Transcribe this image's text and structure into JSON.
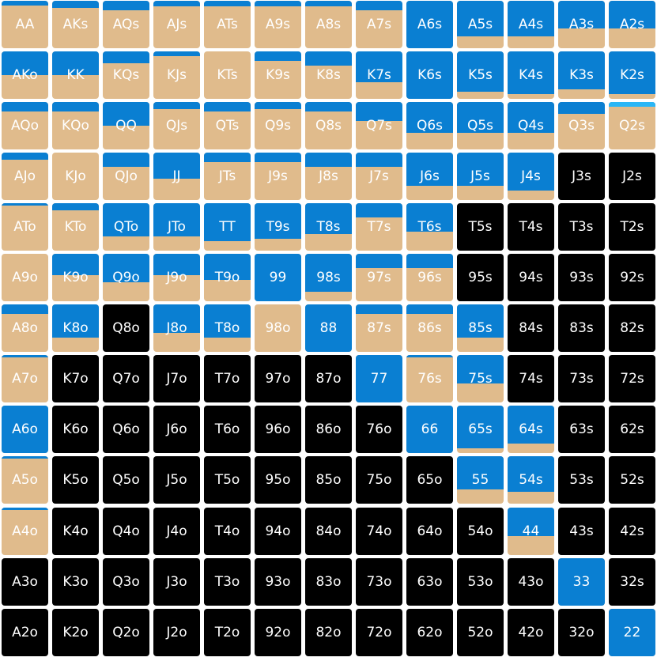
{
  "colors": {
    "raise": "#0a7fd2",
    "call": "#e0bb8c",
    "fold": "#000000",
    "accent": "#29b6f6",
    "text": "#ffffff"
  },
  "legend_note": "Each cell: top portion blue (raise), lower portion tan (call); black = fold",
  "grid": {
    "rows": [
      [
        {
          "hand": "AA",
          "raise": 0.1,
          "call": 0.9
        },
        {
          "hand": "AKs",
          "raise": 0.15,
          "call": 0.85
        },
        {
          "hand": "AQs",
          "raise": 0.2,
          "call": 0.8
        },
        {
          "hand": "AJs",
          "raise": 0.12,
          "call": 0.88
        },
        {
          "hand": "ATs",
          "raise": 0.12,
          "call": 0.88
        },
        {
          "hand": "A9s",
          "raise": 0.12,
          "call": 0.88
        },
        {
          "hand": "A8s",
          "raise": 0.12,
          "call": 0.88
        },
        {
          "hand": "A7s",
          "raise": 0.2,
          "call": 0.8
        },
        {
          "hand": "A6s",
          "raise": 1.0,
          "call": 0.0
        },
        {
          "hand": "A5s",
          "raise": 0.75,
          "call": 0.25
        },
        {
          "hand": "A4s",
          "raise": 0.75,
          "call": 0.25
        },
        {
          "hand": "A3s",
          "raise": 0.58,
          "call": 0.42
        },
        {
          "hand": "A2s",
          "raise": 0.58,
          "call": 0.42
        }
      ],
      [
        {
          "hand": "AKo",
          "raise": 0.5,
          "call": 0.5
        },
        {
          "hand": "KK",
          "raise": 0.5,
          "call": 0.5
        },
        {
          "hand": "KQs",
          "raise": 0.25,
          "call": 0.75
        },
        {
          "hand": "KJs",
          "raise": 0.1,
          "call": 0.9
        },
        {
          "hand": "KTs",
          "raise": 0.0,
          "call": 1.0
        },
        {
          "hand": "K9s",
          "raise": 0.2,
          "call": 0.8
        },
        {
          "hand": "K8s",
          "raise": 0.3,
          "call": 0.7
        },
        {
          "hand": "K7s",
          "raise": 0.65,
          "call": 0.35
        },
        {
          "hand": "K6s",
          "raise": 1.0,
          "call": 0.0
        },
        {
          "hand": "K5s",
          "raise": 0.85,
          "call": 0.15
        },
        {
          "hand": "K4s",
          "raise": 0.9,
          "call": 0.1
        },
        {
          "hand": "K3s",
          "raise": 0.8,
          "call": 0.2
        },
        {
          "hand": "K2s",
          "raise": 0.9,
          "call": 0.1
        }
      ],
      [
        {
          "hand": "AQo",
          "raise": 0.2,
          "call": 0.8
        },
        {
          "hand": "KQo",
          "raise": 0.2,
          "call": 0.8
        },
        {
          "hand": "QQ",
          "raise": 0.5,
          "call": 0.5
        },
        {
          "hand": "QJs",
          "raise": 0.15,
          "call": 0.85
        },
        {
          "hand": "QTs",
          "raise": 0.2,
          "call": 0.8
        },
        {
          "hand": "Q9s",
          "raise": 0.15,
          "call": 0.85
        },
        {
          "hand": "Q8s",
          "raise": 0.2,
          "call": 0.8
        },
        {
          "hand": "Q7s",
          "raise": 0.4,
          "call": 0.6
        },
        {
          "hand": "Q6s",
          "raise": 0.65,
          "call": 0.35
        },
        {
          "hand": "Q5s",
          "raise": 0.65,
          "call": 0.35
        },
        {
          "hand": "Q4s",
          "raise": 0.65,
          "call": 0.35
        },
        {
          "hand": "Q3s",
          "raise": 0.25,
          "call": 0.75
        },
        {
          "hand": "Q2s",
          "raise": 0.1,
          "call": 0.9,
          "cyan": 0.1
        }
      ],
      [
        {
          "hand": "AJo",
          "raise": 0.15,
          "call": 0.85
        },
        {
          "hand": "KJo",
          "raise": 0.0,
          "call": 1.0
        },
        {
          "hand": "QJo",
          "raise": 0.3,
          "call": 0.7
        },
        {
          "hand": "JJ",
          "raise": 0.55,
          "call": 0.45
        },
        {
          "hand": "JTs",
          "raise": 0.2,
          "call": 0.8
        },
        {
          "hand": "J9s",
          "raise": 0.2,
          "call": 0.8
        },
        {
          "hand": "J8s",
          "raise": 0.3,
          "call": 0.7
        },
        {
          "hand": "J7s",
          "raise": 0.3,
          "call": 0.7
        },
        {
          "hand": "J6s",
          "raise": 0.7,
          "call": 0.3
        },
        {
          "hand": "J5s",
          "raise": 0.7,
          "call": 0.3
        },
        {
          "hand": "J4s",
          "raise": 0.8,
          "call": 0.2
        },
        {
          "hand": "J3s",
          "fold": true
        },
        {
          "hand": "J2s",
          "fold": true
        }
      ],
      [
        {
          "hand": "ATo",
          "raise": 0.05,
          "call": 0.95
        },
        {
          "hand": "KTo",
          "raise": 0.15,
          "call": 0.85
        },
        {
          "hand": "QTo",
          "raise": 0.7,
          "call": 0.3
        },
        {
          "hand": "JTo",
          "raise": 0.7,
          "call": 0.3
        },
        {
          "hand": "TT",
          "raise": 0.8,
          "call": 0.2
        },
        {
          "hand": "T9s",
          "raise": 0.75,
          "call": 0.25
        },
        {
          "hand": "T8s",
          "raise": 0.65,
          "call": 0.35
        },
        {
          "hand": "T7s",
          "raise": 0.3,
          "call": 0.7
        },
        {
          "hand": "T6s",
          "raise": 0.6,
          "call": 0.4
        },
        {
          "hand": "T5s",
          "fold": true
        },
        {
          "hand": "T4s",
          "fold": true
        },
        {
          "hand": "T3s",
          "fold": true
        },
        {
          "hand": "T2s",
          "fold": true
        }
      ],
      [
        {
          "hand": "A9o",
          "raise": 0.0,
          "call": 1.0
        },
        {
          "hand": "K9o",
          "raise": 0.45,
          "call": 0.55
        },
        {
          "hand": "Q9o",
          "raise": 0.6,
          "call": 0.4
        },
        {
          "hand": "J9o",
          "raise": 0.45,
          "call": 0.55
        },
        {
          "hand": "T9o",
          "raise": 0.55,
          "call": 0.45
        },
        {
          "hand": "99",
          "raise": 1.0,
          "call": 0.0
        },
        {
          "hand": "98s",
          "raise": 0.8,
          "call": 0.2
        },
        {
          "hand": "97s",
          "raise": 0.3,
          "call": 0.7
        },
        {
          "hand": "96s",
          "raise": 0.3,
          "call": 0.7
        },
        {
          "hand": "95s",
          "fold": true
        },
        {
          "hand": "94s",
          "fold": true
        },
        {
          "hand": "93s",
          "fold": true
        },
        {
          "hand": "92s",
          "fold": true
        }
      ],
      [
        {
          "hand": "A8o",
          "raise": 0.2,
          "call": 0.8
        },
        {
          "hand": "K8o",
          "raise": 0.7,
          "call": 0.3
        },
        {
          "hand": "Q8o",
          "fold": true
        },
        {
          "hand": "J8o",
          "raise": 0.6,
          "call": 0.4
        },
        {
          "hand": "T8o",
          "raise": 0.7,
          "call": 0.3
        },
        {
          "hand": "98o",
          "raise": 0.0,
          "call": 1.0
        },
        {
          "hand": "88",
          "raise": 1.0,
          "call": 0.0
        },
        {
          "hand": "87s",
          "raise": 0.2,
          "call": 0.8
        },
        {
          "hand": "86s",
          "raise": 0.2,
          "call": 0.8
        },
        {
          "hand": "85s",
          "raise": 0.7,
          "call": 0.3
        },
        {
          "hand": "84s",
          "fold": true
        },
        {
          "hand": "83s",
          "fold": true
        },
        {
          "hand": "82s",
          "fold": true
        }
      ],
      [
        {
          "hand": "A7o",
          "raise": 0.05,
          "call": 0.95
        },
        {
          "hand": "K7o",
          "fold": true
        },
        {
          "hand": "Q7o",
          "fold": true
        },
        {
          "hand": "J7o",
          "fold": true
        },
        {
          "hand": "T7o",
          "fold": true
        },
        {
          "hand": "97o",
          "fold": true
        },
        {
          "hand": "87o",
          "fold": true
        },
        {
          "hand": "77",
          "raise": 1.0,
          "call": 0.0
        },
        {
          "hand": "76s",
          "raise": 0.05,
          "call": 0.95
        },
        {
          "hand": "75s",
          "raise": 0.6,
          "call": 0.4
        },
        {
          "hand": "74s",
          "fold": true
        },
        {
          "hand": "73s",
          "fold": true
        },
        {
          "hand": "72s",
          "fold": true
        }
      ],
      [
        {
          "hand": "A6o",
          "raise": 1.0,
          "call": 0.0
        },
        {
          "hand": "K6o",
          "fold": true
        },
        {
          "hand": "Q6o",
          "fold": true
        },
        {
          "hand": "J6o",
          "fold": true
        },
        {
          "hand": "T6o",
          "fold": true
        },
        {
          "hand": "96o",
          "fold": true
        },
        {
          "hand": "86o",
          "fold": true
        },
        {
          "hand": "76o",
          "fold": true
        },
        {
          "hand": "66",
          "raise": 1.0,
          "call": 0.0
        },
        {
          "hand": "65s",
          "raise": 0.9,
          "call": 0.1
        },
        {
          "hand": "64s",
          "raise": 0.8,
          "call": 0.2
        },
        {
          "hand": "63s",
          "fold": true
        },
        {
          "hand": "62s",
          "fold": true
        }
      ],
      [
        {
          "hand": "A5o",
          "raise": 0.05,
          "call": 0.95
        },
        {
          "hand": "K5o",
          "fold": true
        },
        {
          "hand": "Q5o",
          "fold": true
        },
        {
          "hand": "J5o",
          "fold": true
        },
        {
          "hand": "T5o",
          "fold": true
        },
        {
          "hand": "95o",
          "fold": true
        },
        {
          "hand": "85o",
          "fold": true
        },
        {
          "hand": "75o",
          "fold": true
        },
        {
          "hand": "65o",
          "fold": true
        },
        {
          "hand": "55",
          "raise": 0.7,
          "call": 0.3
        },
        {
          "hand": "54s",
          "raise": 0.75,
          "call": 0.25
        },
        {
          "hand": "53s",
          "fold": true
        },
        {
          "hand": "52s",
          "fold": true
        }
      ],
      [
        {
          "hand": "A4o",
          "raise": 0.05,
          "call": 0.95
        },
        {
          "hand": "K4o",
          "fold": true
        },
        {
          "hand": "Q4o",
          "fold": true
        },
        {
          "hand": "J4o",
          "fold": true
        },
        {
          "hand": "T4o",
          "fold": true
        },
        {
          "hand": "94o",
          "fold": true
        },
        {
          "hand": "84o",
          "fold": true
        },
        {
          "hand": "74o",
          "fold": true
        },
        {
          "hand": "64o",
          "fold": true
        },
        {
          "hand": "54o",
          "fold": true
        },
        {
          "hand": "44",
          "raise": 0.6,
          "call": 0.4
        },
        {
          "hand": "43s",
          "fold": true
        },
        {
          "hand": "42s",
          "fold": true
        }
      ],
      [
        {
          "hand": "A3o",
          "fold": true
        },
        {
          "hand": "K3o",
          "fold": true
        },
        {
          "hand": "Q3o",
          "fold": true
        },
        {
          "hand": "J3o",
          "fold": true
        },
        {
          "hand": "T3o",
          "fold": true
        },
        {
          "hand": "93o",
          "fold": true
        },
        {
          "hand": "83o",
          "fold": true
        },
        {
          "hand": "73o",
          "fold": true
        },
        {
          "hand": "63o",
          "fold": true
        },
        {
          "hand": "53o",
          "fold": true
        },
        {
          "hand": "43o",
          "fold": true
        },
        {
          "hand": "33",
          "raise": 1.0,
          "call": 0.0
        },
        {
          "hand": "32s",
          "fold": true
        }
      ],
      [
        {
          "hand": "A2o",
          "fold": true
        },
        {
          "hand": "K2o",
          "fold": true
        },
        {
          "hand": "Q2o",
          "fold": true
        },
        {
          "hand": "J2o",
          "fold": true
        },
        {
          "hand": "T2o",
          "fold": true
        },
        {
          "hand": "92o",
          "fold": true
        },
        {
          "hand": "82o",
          "fold": true
        },
        {
          "hand": "72o",
          "fold": true
        },
        {
          "hand": "62o",
          "fold": true
        },
        {
          "hand": "52o",
          "fold": true
        },
        {
          "hand": "42o",
          "fold": true
        },
        {
          "hand": "32o",
          "fold": true
        },
        {
          "hand": "22",
          "raise": 1.0,
          "call": 0.0
        }
      ]
    ]
  }
}
